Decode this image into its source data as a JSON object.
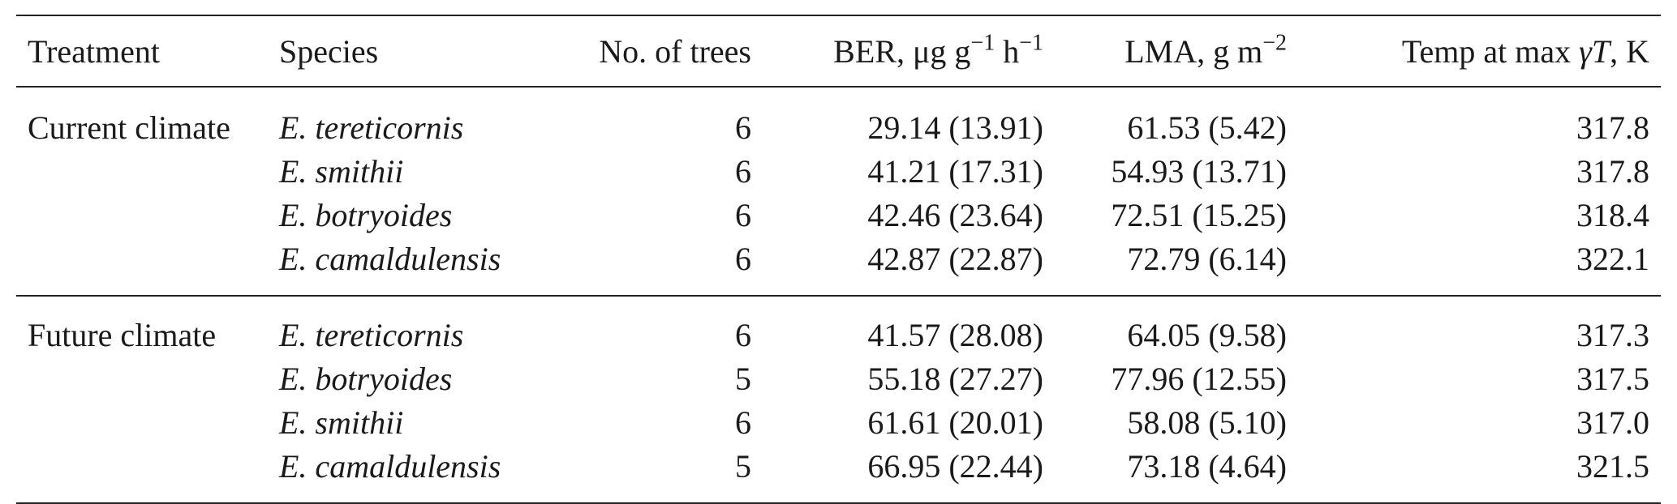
{
  "table": {
    "headers": {
      "treatment": "Treatment",
      "species": "Species",
      "trees": "No. of trees",
      "ber_prefix": "BER, μg g",
      "ber_exp1": "−1",
      "ber_mid": " h",
      "ber_exp2": "−1",
      "lma_prefix": "LMA, g m",
      "lma_exp": "−2",
      "temp_prefix": "Temp at max ",
      "temp_symbol": "γT",
      "temp_suffix": ", K"
    },
    "groups": [
      {
        "treatment": "Current climate",
        "rows": [
          {
            "species": "E. tereticornis",
            "trees": "6",
            "ber": "29.14 (13.91)",
            "lma": "61.53 (5.42)",
            "temp": "317.8"
          },
          {
            "species": "E. smithii",
            "trees": "6",
            "ber": "41.21 (17.31)",
            "lma": "54.93 (13.71)",
            "temp": "317.8"
          },
          {
            "species": "E. botryoides",
            "trees": "6",
            "ber": "42.46 (23.64)",
            "lma": "72.51 (15.25)",
            "temp": "318.4"
          },
          {
            "species": "E. camaldulensis",
            "trees": "6",
            "ber": "42.87 (22.87)",
            "lma": "72.79 (6.14)",
            "temp": "322.1"
          }
        ]
      },
      {
        "treatment": "Future climate",
        "rows": [
          {
            "species": "E. tereticornis",
            "trees": "6",
            "ber": "41.57 (28.08)",
            "lma": "64.05 (9.58)",
            "temp": "317.3"
          },
          {
            "species": "E. botryoides",
            "trees": "5",
            "ber": "55.18 (27.27)",
            "lma": "77.96 (12.55)",
            "temp": "317.5"
          },
          {
            "species": "E. smithii",
            "trees": "6",
            "ber": "61.61 (20.01)",
            "lma": "58.08 (5.10)",
            "temp": "317.0"
          },
          {
            "species": "E. camaldulensis",
            "trees": "5",
            "ber": "66.95 (22.44)",
            "lma": "73.18 (4.64)",
            "temp": "321.5"
          }
        ]
      }
    ]
  }
}
